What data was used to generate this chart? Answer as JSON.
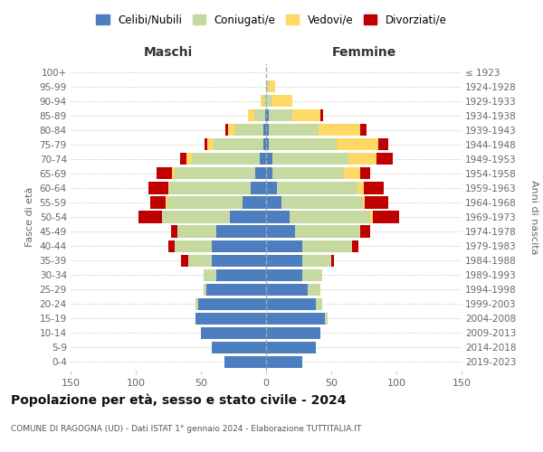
{
  "age_groups": [
    "0-4",
    "5-9",
    "10-14",
    "15-19",
    "20-24",
    "25-29",
    "30-34",
    "35-39",
    "40-44",
    "45-49",
    "50-54",
    "55-59",
    "60-64",
    "65-69",
    "70-74",
    "75-79",
    "80-84",
    "85-89",
    "90-94",
    "95-99",
    "100+"
  ],
  "birth_years": [
    "2019-2023",
    "2014-2018",
    "2009-2013",
    "2004-2008",
    "1999-2003",
    "1994-1998",
    "1989-1993",
    "1984-1988",
    "1979-1983",
    "1974-1978",
    "1969-1973",
    "1964-1968",
    "1959-1963",
    "1954-1958",
    "1949-1953",
    "1944-1948",
    "1939-1943",
    "1934-1938",
    "1929-1933",
    "1924-1928",
    "≤ 1923"
  ],
  "maschi": {
    "celibi": [
      32,
      42,
      50,
      54,
      52,
      46,
      38,
      42,
      42,
      38,
      28,
      18,
      12,
      8,
      5,
      2,
      2,
      1,
      0,
      0,
      0
    ],
    "coniugati": [
      0,
      0,
      0,
      0,
      2,
      2,
      10,
      18,
      28,
      30,
      52,
      58,
      62,
      62,
      52,
      38,
      22,
      8,
      2,
      0,
      0
    ],
    "vedovi": [
      0,
      0,
      0,
      0,
      0,
      0,
      0,
      0,
      0,
      0,
      0,
      1,
      1,
      2,
      4,
      5,
      5,
      5,
      2,
      0,
      0
    ],
    "divorziati": [
      0,
      0,
      0,
      0,
      0,
      0,
      0,
      5,
      5,
      5,
      18,
      12,
      15,
      12,
      5,
      2,
      2,
      0,
      0,
      0,
      0
    ]
  },
  "femmine": {
    "nubili": [
      28,
      38,
      42,
      45,
      38,
      32,
      28,
      28,
      28,
      22,
      18,
      12,
      8,
      5,
      5,
      2,
      2,
      2,
      0,
      0,
      0
    ],
    "coniugate": [
      0,
      0,
      0,
      2,
      5,
      10,
      15,
      22,
      38,
      50,
      62,
      62,
      62,
      55,
      58,
      52,
      38,
      18,
      5,
      2,
      0
    ],
    "vedove": [
      0,
      0,
      0,
      0,
      0,
      0,
      0,
      0,
      0,
      0,
      2,
      2,
      5,
      12,
      22,
      32,
      32,
      22,
      15,
      5,
      0
    ],
    "divorziate": [
      0,
      0,
      0,
      0,
      0,
      0,
      0,
      2,
      5,
      8,
      20,
      18,
      15,
      8,
      12,
      8,
      5,
      2,
      0,
      0,
      0
    ]
  },
  "colors": {
    "celibi": "#4d7ebf",
    "coniugati": "#c5d9a0",
    "vedovi": "#ffd966",
    "divorziati": "#c00000"
  },
  "xlim": 150,
  "title": "Popolazione per età, sesso e stato civile - 2024",
  "subtitle": "COMUNE DI RAGOGNA (UD) - Dati ISTAT 1° gennaio 2024 - Elaborazione TUTTITALIA.IT",
  "ylabel_left": "Fasce di età",
  "ylabel_right": "Anni di nascita",
  "xlabel_maschi": "Maschi",
  "xlabel_femmine": "Femmine",
  "legend_labels": [
    "Celibi/Nubili",
    "Coniugati/e",
    "Vedovi/e",
    "Divorziati/e"
  ],
  "background_color": "#ffffff",
  "grid_color": "#cccccc"
}
